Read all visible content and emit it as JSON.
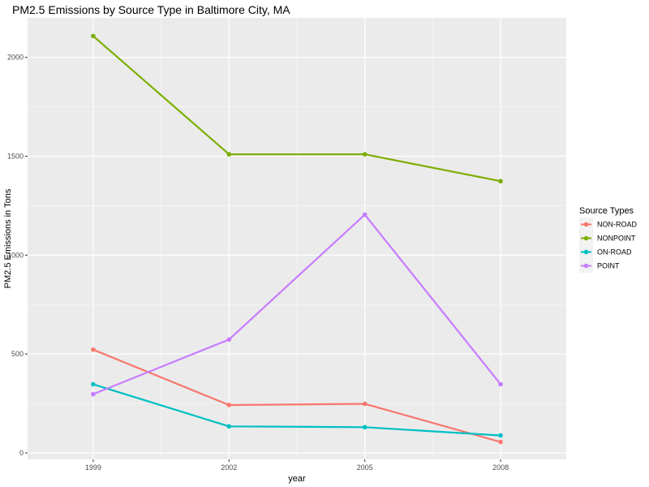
{
  "chart_data": {
    "type": "line",
    "title": "PM2.5 Emissions by Source Type in Baltimore City, MA",
    "xlabel": "year",
    "ylabel": "PM2.5 Emissions in Tons",
    "x": [
      1999,
      2002,
      2005,
      2008
    ],
    "x_tick_labels": [
      "1999",
      "2002",
      "2005",
      "2008"
    ],
    "xlim": [
      1997.55,
      2009.45
    ],
    "y_ticks": [
      0,
      500,
      1000,
      1500,
      2000
    ],
    "y_tick_labels": [
      "0",
      "500",
      "1000",
      "1500",
      "2000"
    ],
    "ylim": [
      -33,
      2200
    ],
    "grid": true,
    "legend": {
      "title": "Source Types",
      "placement": "right"
    },
    "series": [
      {
        "name": "NON-ROAD",
        "color": "#F8766D",
        "values": [
          522,
          242,
          248,
          55
        ]
      },
      {
        "name": "NONPOINT",
        "color": "#7CAE00",
        "values": [
          2108,
          1510,
          1510,
          1374
        ]
      },
      {
        "name": "ON-ROAD",
        "color": "#00BFC4",
        "values": [
          347,
          134,
          130,
          88
        ]
      },
      {
        "name": "POINT",
        "color": "#C77CFF",
        "values": [
          297,
          573,
          1205,
          347
        ]
      }
    ]
  }
}
